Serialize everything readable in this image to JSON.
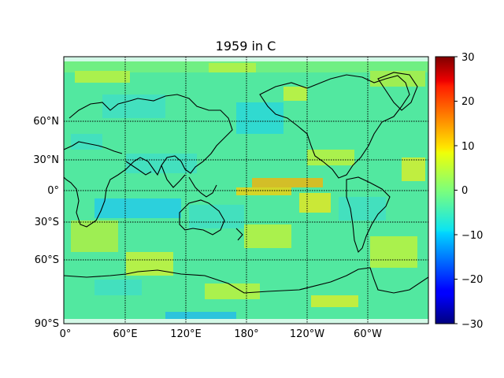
{
  "title": "1959 in C",
  "map": {
    "lat_labels": [
      "60°N",
      "30°N",
      "0°",
      "30°S",
      "60°S",
      "90°S"
    ],
    "lon_labels": [
      "0°",
      "60°E",
      "120°E",
      "180°",
      "120°W",
      "60°W"
    ],
    "gridlines": "dotted"
  },
  "colorbar": {
    "colormap": "jet",
    "range": [
      -30,
      30
    ],
    "ticks": [
      "30",
      "20",
      "10",
      "0",
      "−10",
      "−20",
      "−30"
    ]
  },
  "colors": {
    "coastline": "#000000",
    "background_field": "#4de6a6"
  }
}
